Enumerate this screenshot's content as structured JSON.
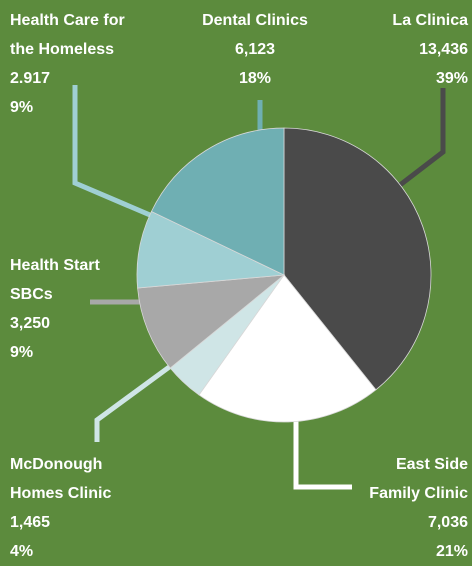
{
  "chart_data": {
    "type": "pie",
    "categories": [
      "La Clinica",
      "East Side Family Clinic",
      "McDonough Homes Clinic",
      "Health Start SBCs",
      "Health Care for the Homeless",
      "Dental Clinics"
    ],
    "values": [
      13436,
      7036,
      1465,
      3250,
      2917,
      6123
    ],
    "value_labels": [
      "13,436",
      "7,036",
      "1,465",
      "3,250",
      "2.917",
      "6,123"
    ],
    "percentages": [
      39,
      21,
      4,
      9,
      9,
      18
    ],
    "percent_labels": [
      "39%",
      "21%",
      "4%",
      "9%",
      "9%",
      "18%"
    ],
    "colors": [
      "#4a4a4a",
      "#ffffff",
      "#cfe5e6",
      "#a8a8a8",
      "#9fcfd3",
      "#6fafb3"
    ]
  }
}
